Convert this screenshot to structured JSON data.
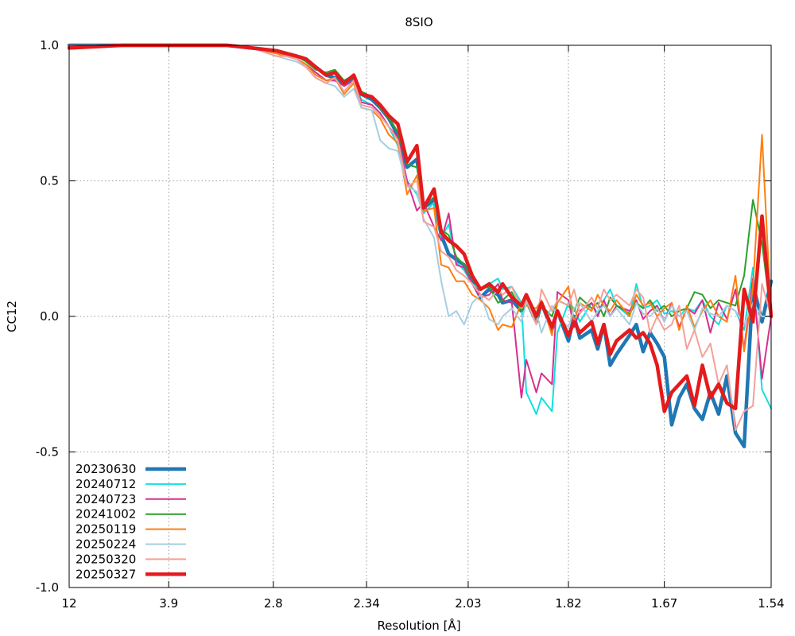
{
  "chart_data": {
    "type": "line",
    "title": "8SIO",
    "xlabel": "Resolution [Å]",
    "ylabel": "CC12",
    "x_axis_scale": "inverse-square (1/d²)",
    "xlim": [
      12,
      1.54
    ],
    "ylim": [
      -1.0,
      1.0
    ],
    "grid": true,
    "legend_position": "bottom-left",
    "x_ticks": [
      {
        "value": 12,
        "label": "12"
      },
      {
        "value": 3.9,
        "label": "3.9"
      },
      {
        "value": 2.8,
        "label": "2.8"
      },
      {
        "value": 2.34,
        "label": "2.34"
      },
      {
        "value": 2.03,
        "label": "2.03"
      },
      {
        "value": 1.82,
        "label": "1.82"
      },
      {
        "value": 1.67,
        "label": "1.67"
      },
      {
        "value": 1.54,
        "label": "1.54"
      }
    ],
    "y_ticks": [
      {
        "value": 1.0,
        "label": "1.0"
      },
      {
        "value": 0.5,
        "label": "0.5"
      },
      {
        "value": 0.0,
        "label": "0.0"
      },
      {
        "value": -0.5,
        "label": "-0.5"
      },
      {
        "value": -1.0,
        "label": "-1.0"
      }
    ],
    "x": [
      12.0,
      5.11,
      4.28,
      3.78,
      3.43,
      3.16,
      2.95,
      2.78,
      2.72,
      2.66,
      2.61,
      2.56,
      2.51,
      2.47,
      2.43,
      2.39,
      2.36,
      2.32,
      2.29,
      2.26,
      2.23,
      2.2,
      2.17,
      2.15,
      2.12,
      2.1,
      2.08,
      2.06,
      2.04,
      2.02,
      2.0,
      1.98,
      1.96,
      1.95,
      1.93,
      1.91,
      1.9,
      1.88,
      1.87,
      1.85,
      1.84,
      1.82,
      1.81,
      1.8,
      1.78,
      1.77,
      1.76,
      1.75,
      1.74,
      1.72,
      1.71,
      1.7,
      1.69,
      1.68,
      1.67,
      1.66,
      1.65,
      1.64,
      1.63,
      1.62,
      1.61,
      1.6,
      1.59,
      1.58,
      1.57,
      1.56,
      1.55,
      1.54
    ],
    "series": [
      {
        "name": "20230630",
        "color": "#1f77b4",
        "width": 4.5,
        "values": [
          1.0,
          1.0,
          1.0,
          1.0,
          1.0,
          1.0,
          0.99,
          0.98,
          0.97,
          0.96,
          0.95,
          0.92,
          0.89,
          0.88,
          0.86,
          0.88,
          0.82,
          0.8,
          0.77,
          0.73,
          0.67,
          0.55,
          0.58,
          0.4,
          0.43,
          0.3,
          0.23,
          0.21,
          0.19,
          0.13,
          0.07,
          0.1,
          0.08,
          0.05,
          0.06,
          0.02,
          0.06,
          -0.02,
          0.05,
          -0.05,
          0.02,
          -0.09,
          0.0,
          -0.08,
          -0.05,
          -0.12,
          -0.03,
          -0.18,
          -0.14,
          -0.07,
          -0.03,
          -0.13,
          -0.06,
          -0.1,
          -0.15,
          -0.4,
          -0.3,
          -0.25,
          -0.34,
          -0.38,
          -0.28,
          -0.36,
          -0.22,
          -0.43,
          -0.48,
          0.12,
          -0.02,
          0.13
        ]
      },
      {
        "name": "20240712",
        "color": "#10e0e0",
        "width": 2,
        "values": [
          1.0,
          1.0,
          1.0,
          1.0,
          1.0,
          1.0,
          0.99,
          0.97,
          0.96,
          0.95,
          0.93,
          0.9,
          0.87,
          0.87,
          0.85,
          0.87,
          0.8,
          0.78,
          0.75,
          0.7,
          0.63,
          0.5,
          0.45,
          0.38,
          0.42,
          0.29,
          0.34,
          0.2,
          0.17,
          0.12,
          0.1,
          0.12,
          0.14,
          0.1,
          0.11,
          0.05,
          -0.28,
          -0.36,
          -0.3,
          -0.35,
          -0.06,
          0.05,
          0.03,
          -0.02,
          0.05,
          0.01,
          0.06,
          0.1,
          0.04,
          0.0,
          0.12,
          0.03,
          0.04,
          0.06,
          0.01,
          0.02,
          0.0,
          0.03,
          0.02,
          0.06,
          0.0,
          -0.03,
          0.04,
          0.02,
          -0.05,
          0.18,
          -0.27,
          -0.34
        ]
      },
      {
        "name": "20240723",
        "color": "#d62f8f",
        "width": 2,
        "values": [
          1.0,
          1.0,
          1.0,
          1.0,
          1.0,
          1.0,
          0.99,
          0.97,
          0.96,
          0.95,
          0.93,
          0.9,
          0.87,
          0.87,
          0.85,
          0.87,
          0.79,
          0.78,
          0.75,
          0.7,
          0.66,
          0.5,
          0.39,
          0.42,
          0.33,
          0.28,
          0.38,
          0.19,
          0.18,
          0.12,
          0.07,
          0.08,
          0.12,
          0.06,
          0.05,
          -0.3,
          -0.16,
          -0.28,
          -0.21,
          -0.25,
          0.09,
          0.06,
          -0.04,
          0.02,
          0.05,
          0.0,
          0.06,
          0.0,
          0.04,
          0.02,
          0.06,
          -0.01,
          0.02,
          0.04,
          -0.02,
          0.05,
          -0.04,
          0.03,
          0.01,
          0.06,
          -0.06,
          0.05,
          -0.01,
          0.1,
          -0.12,
          0.14,
          -0.23,
          0.0
        ]
      },
      {
        "name": "20241002",
        "color": "#2ca02c",
        "width": 2,
        "values": [
          1.0,
          1.0,
          1.0,
          1.0,
          1.0,
          1.0,
          0.99,
          0.97,
          0.97,
          0.96,
          0.94,
          0.91,
          0.9,
          0.91,
          0.87,
          0.89,
          0.83,
          0.81,
          0.77,
          0.73,
          0.68,
          0.56,
          0.55,
          0.41,
          0.44,
          0.32,
          0.3,
          0.22,
          0.19,
          0.14,
          0.1,
          0.11,
          0.05,
          0.06,
          0.09,
          0.02,
          0.05,
          -0.02,
          0.04,
          0.0,
          0.06,
          0.04,
          0.02,
          0.07,
          0.03,
          0.05,
          0.0,
          0.07,
          0.04,
          0.01,
          0.05,
          0.03,
          0.06,
          0.02,
          0.04,
          0.0,
          0.02,
          0.03,
          0.09,
          0.08,
          0.03,
          0.06,
          0.05,
          0.04,
          0.15,
          0.43,
          0.27,
          0.0
        ]
      },
      {
        "name": "20250119",
        "color": "#ff7f0e",
        "width": 2,
        "values": [
          1.0,
          1.0,
          1.0,
          1.0,
          1.0,
          1.0,
          0.99,
          0.97,
          0.96,
          0.95,
          0.93,
          0.89,
          0.87,
          0.88,
          0.82,
          0.86,
          0.77,
          0.76,
          0.73,
          0.67,
          0.64,
          0.45,
          0.52,
          0.39,
          0.4,
          0.19,
          0.18,
          0.13,
          0.13,
          0.08,
          0.06,
          0.03,
          -0.05,
          -0.03,
          -0.04,
          0.05,
          0.04,
          0.03,
          0.06,
          -0.07,
          0.05,
          0.11,
          -0.02,
          0.05,
          0.02,
          0.08,
          0.04,
          0.02,
          0.06,
          0.0,
          0.08,
          0.04,
          0.05,
          0.0,
          0.03,
          0.05,
          -0.05,
          0.04,
          -0.04,
          0.02,
          0.06,
          0.0,
          -0.02,
          0.15,
          -0.13,
          0.11,
          0.67,
          0.0
        ]
      },
      {
        "name": "20250224",
        "color": "#a6cee3",
        "width": 2,
        "values": [
          1.0,
          1.0,
          1.0,
          1.0,
          1.0,
          1.0,
          0.99,
          0.96,
          0.95,
          0.94,
          0.92,
          0.88,
          0.86,
          0.85,
          0.81,
          0.84,
          0.77,
          0.76,
          0.65,
          0.62,
          0.61,
          0.48,
          0.46,
          0.36,
          0.29,
          0.13,
          0.0,
          0.02,
          -0.03,
          0.05,
          0.08,
          -0.01,
          -0.03,
          0.0,
          0.03,
          -0.02,
          0.05,
          0.02,
          -0.06,
          0.04,
          0.0,
          -0.04,
          0.03,
          0.05,
          -0.02,
          0.02,
          0.04,
          0.0,
          0.03,
          -0.03,
          0.05,
          0.01,
          0.0,
          0.03,
          -0.02,
          0.04,
          0.0,
          0.02,
          -0.05,
          0.03,
          0.01,
          0.0,
          0.04,
          0.02,
          -0.03,
          0.05,
          0.0,
          0.0
        ]
      },
      {
        "name": "20250320",
        "color": "#f4a09a",
        "width": 2,
        "values": [
          1.0,
          1.0,
          1.0,
          1.0,
          1.0,
          1.0,
          0.99,
          0.96,
          0.96,
          0.95,
          0.92,
          0.88,
          0.86,
          0.88,
          0.83,
          0.87,
          0.78,
          0.77,
          0.74,
          0.7,
          0.65,
          0.48,
          0.5,
          0.35,
          0.33,
          0.24,
          0.22,
          0.17,
          0.15,
          0.12,
          0.08,
          0.06,
          0.1,
          0.08,
          0.11,
          0.03,
          0.06,
          -0.03,
          0.1,
          0.02,
          0.06,
          0.04,
          0.1,
          0.01,
          0.07,
          0.03,
          0.1,
          0.06,
          0.08,
          0.04,
          0.1,
          0.07,
          -0.06,
          0.0,
          -0.05,
          -0.03,
          0.04,
          -0.12,
          -0.05,
          -0.15,
          -0.1,
          -0.25,
          -0.18,
          -0.42,
          -0.35,
          -0.33,
          0.12,
          0.0
        ]
      },
      {
        "name": "20250327",
        "color": "#e41a1c",
        "width": 4.5,
        "values": [
          0.99,
          1.0,
          1.0,
          1.0,
          1.0,
          1.0,
          0.99,
          0.98,
          0.97,
          0.96,
          0.95,
          0.92,
          0.89,
          0.9,
          0.86,
          0.89,
          0.82,
          0.81,
          0.78,
          0.74,
          0.71,
          0.57,
          0.63,
          0.4,
          0.47,
          0.31,
          0.28,
          0.26,
          0.23,
          0.15,
          0.1,
          0.12,
          0.09,
          0.12,
          0.07,
          0.04,
          0.08,
          0.0,
          0.05,
          -0.04,
          0.02,
          -0.07,
          -0.02,
          -0.06,
          -0.02,
          -0.1,
          -0.03,
          -0.14,
          -0.09,
          -0.05,
          -0.08,
          -0.06,
          -0.1,
          -0.18,
          -0.35,
          -0.28,
          -0.25,
          -0.22,
          -0.33,
          -0.18,
          -0.3,
          -0.25,
          -0.32,
          -0.34,
          0.1,
          -0.02,
          0.37,
          0.0
        ]
      }
    ]
  }
}
